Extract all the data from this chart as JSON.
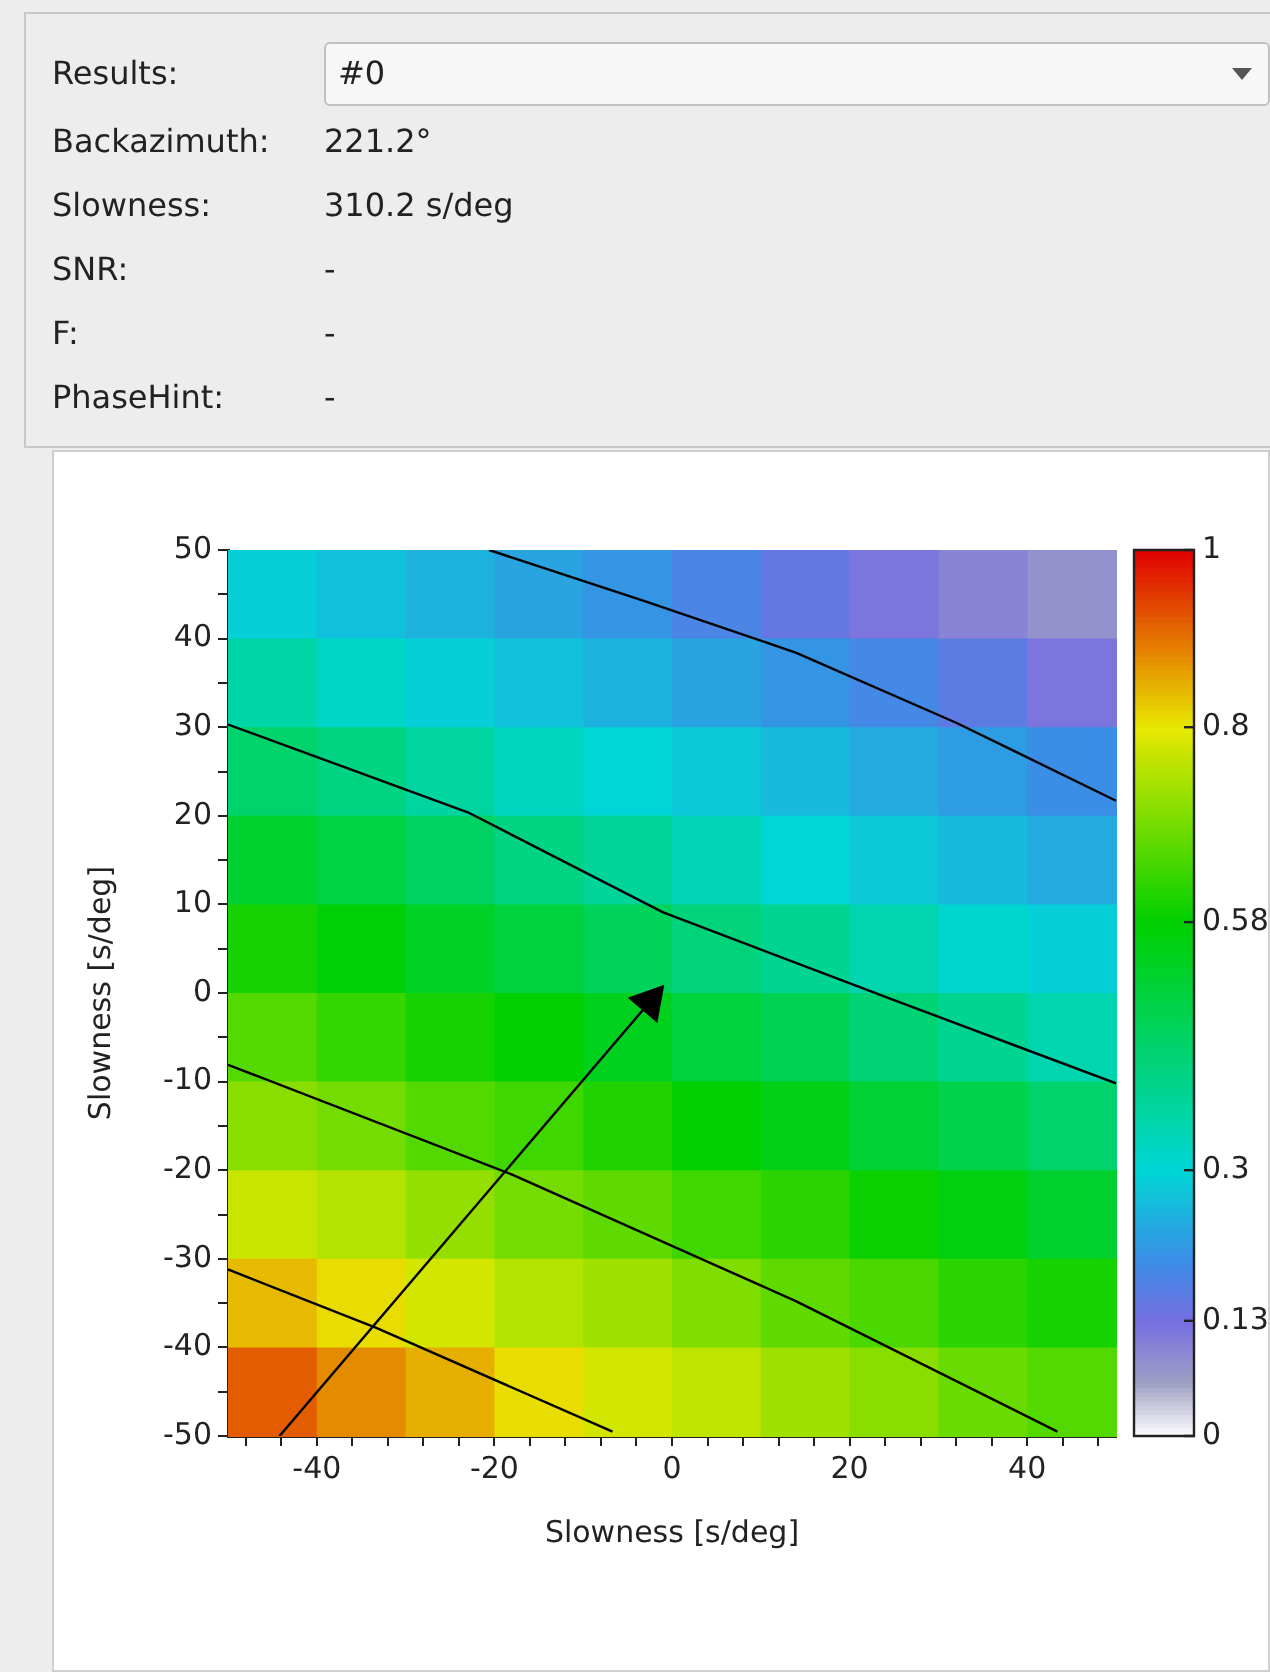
{
  "chart_data": {
    "type": "heatmap",
    "xlabel": "Slowness [s/deg]",
    "ylabel": "Slowness [s/deg]",
    "annotations": [
      "Results:",
      "#0",
      "Backazimuth:",
      "221.2°",
      "Slowness:",
      "310.2 s/deg",
      "SNR:",
      "-",
      "F:",
      "-",
      "PhaseHint:",
      "-"
    ],
    "cells": [
      [
        0.29,
        0.27,
        0.25,
        0.23,
        0.21,
        0.18,
        0.15,
        0.12,
        0.1,
        0.08
      ],
      [
        0.36,
        0.32,
        0.29,
        0.27,
        0.25,
        0.23,
        0.21,
        0.19,
        0.16,
        0.12
      ],
      [
        0.44,
        0.41,
        0.37,
        0.33,
        0.3,
        0.28,
        0.26,
        0.24,
        0.22,
        0.2
      ],
      [
        0.52,
        0.49,
        0.45,
        0.41,
        0.38,
        0.34,
        0.3,
        0.28,
        0.26,
        0.24
      ],
      [
        0.6,
        0.57,
        0.53,
        0.5,
        0.46,
        0.42,
        0.39,
        0.35,
        0.31,
        0.29
      ],
      [
        0.66,
        0.63,
        0.6,
        0.58,
        0.54,
        0.5,
        0.47,
        0.43,
        0.39,
        0.35
      ],
      [
        0.71,
        0.69,
        0.66,
        0.64,
        0.61,
        0.58,
        0.55,
        0.51,
        0.48,
        0.44
      ],
      [
        0.77,
        0.75,
        0.72,
        0.69,
        0.67,
        0.64,
        0.62,
        0.59,
        0.56,
        0.52
      ],
      [
        0.84,
        0.81,
        0.78,
        0.75,
        0.73,
        0.7,
        0.67,
        0.65,
        0.62,
        0.6
      ],
      [
        0.92,
        0.88,
        0.85,
        0.81,
        0.78,
        0.76,
        0.73,
        0.71,
        0.68,
        0.66
      ]
    ],
    "clim": [
      0,
      1
    ],
    "cticks": [
      0,
      0.13,
      0.3,
      0.58,
      0.8,
      1
    ],
    "xlim": [
      -50,
      50
    ],
    "ylim": [
      -50,
      50
    ],
    "xticks": [
      {
        "value": -48,
        "label": null
      },
      {
        "value": -44,
        "label": null
      },
      -40,
      {
        "value": -36,
        "label": null
      },
      {
        "value": -32,
        "label": null
      },
      {
        "value": -28,
        "label": null
      },
      {
        "value": -24,
        "label": null
      },
      -20,
      {
        "value": -16,
        "label": null
      },
      {
        "value": -12,
        "label": null
      },
      {
        "value": -8,
        "label": null
      },
      {
        "value": -4,
        "label": null
      },
      0,
      {
        "value": 4,
        "label": null
      },
      {
        "value": 8,
        "label": null
      },
      {
        "value": 12,
        "label": null
      },
      {
        "value": 16,
        "label": null
      },
      20,
      {
        "value": 24,
        "label": null
      },
      {
        "value": 28,
        "label": null
      },
      {
        "value": 32,
        "label": null
      },
      {
        "value": 36,
        "label": null
      },
      40,
      {
        "value": 44,
        "label": null
      },
      {
        "value": 48,
        "label": null
      }
    ],
    "yticks": [
      -50,
      {
        "value": -45,
        "label": null
      },
      -40,
      {
        "value": -35,
        "label": null
      },
      -30,
      {
        "value": -25,
        "label": null
      },
      -20,
      {
        "value": -15,
        "label": null
      },
      -10,
      {
        "value": -5,
        "label": null
      },
      0,
      {
        "value": 5,
        "label": null
      },
      10,
      {
        "value": 15,
        "label": null
      },
      20,
      {
        "value": 25,
        "label": null
      },
      30,
      {
        "value": 35,
        "label": null
      },
      40,
      {
        "value": 45,
        "label": null
      },
      50
    ],
    "series": [
      {
        "type": "line",
        "color": "#000000",
        "x": [
          -20.6,
          -3,
          14,
          32,
          50
        ],
        "values": [
          50,
          44.2,
          38.4,
          30.5,
          21.7
        ]
      },
      {
        "type": "line",
        "color": "#000000",
        "x": [
          -50,
          -23,
          -1,
          25,
          50
        ],
        "values": [
          30.3,
          20.4,
          9.1,
          -0.8,
          -10.2
        ]
      },
      {
        "type": "line",
        "color": "#000000",
        "x": [
          -50,
          -18,
          14,
          43.4
        ],
        "values": [
          -8.1,
          -20.5,
          -34.8,
          -49.5
        ]
      },
      {
        "type": "line",
        "color": "#000000",
        "x": [
          -50,
          -33.3,
          -6.7
        ],
        "values": [
          -31.2,
          -37.8,
          -49.5
        ]
      },
      {
        "type": "line",
        "color": "#000000",
        "marker": "triangle",
        "x": [
          -44.2,
          -2.5
        ],
        "values": [
          -50,
          -1
        ]
      }
    ],
    "grid": false
  }
}
